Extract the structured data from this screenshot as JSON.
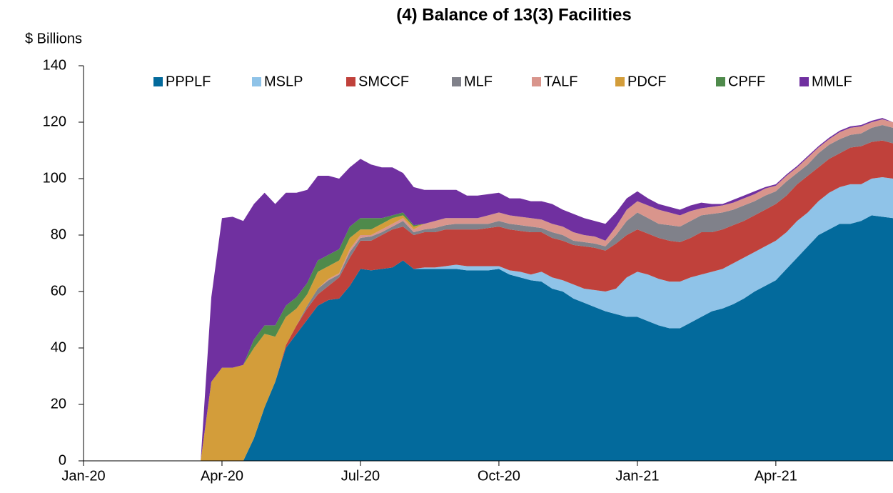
{
  "chart_data": {
    "type": "stacked_area",
    "title": "(4) Balance of 13(3) Facilities",
    "y_label": "$ Billions",
    "categories": [
      "Jan-20",
      null,
      null,
      null,
      null,
      null,
      null,
      null,
      null,
      null,
      null,
      null,
      null,
      "Apr-20",
      null,
      null,
      null,
      null,
      null,
      null,
      null,
      null,
      null,
      null,
      null,
      null,
      "Jul-20",
      null,
      null,
      null,
      null,
      null,
      null,
      null,
      null,
      null,
      null,
      null,
      null,
      "Oct-20",
      null,
      null,
      null,
      null,
      null,
      null,
      null,
      null,
      null,
      null,
      null,
      null,
      "Jan-21",
      null,
      null,
      null,
      null,
      null,
      null,
      null,
      null,
      null,
      null,
      null,
      null,
      "Apr-21",
      null,
      null,
      null,
      null,
      null,
      null,
      null,
      null,
      null,
      null,
      null
    ],
    "ylim": [
      0,
      140
    ],
    "yticks": [
      0,
      20,
      40,
      60,
      80,
      100,
      120,
      140
    ],
    "legend": "top",
    "series": [
      {
        "name": "PPPLF",
        "color": "#036a9c",
        "values": [
          0,
          0,
          0,
          0,
          0,
          0,
          0,
          0,
          0,
          0,
          0,
          0,
          0,
          0,
          0,
          0,
          8,
          19,
          28,
          40,
          45,
          50,
          55,
          57,
          57.5,
          62,
          68,
          67.5,
          68,
          68.5,
          71,
          68,
          68,
          68,
          68,
          68,
          67.5,
          67.5,
          67.5,
          68,
          66,
          65,
          64,
          63.5,
          61,
          60,
          57.5,
          56,
          54.5,
          53,
          52,
          51,
          51,
          49.5,
          48,
          47,
          47,
          49,
          51,
          53,
          54,
          55.5,
          57.5,
          60,
          62,
          64,
          68,
          72,
          76,
          80,
          82,
          84,
          84,
          85,
          87,
          86.5,
          86
        ]
      },
      {
        "name": "MSLP",
        "color": "#8fc3e8",
        "values": [
          0,
          0,
          0,
          0,
          0,
          0,
          0,
          0,
          0,
          0,
          0,
          0,
          0,
          0,
          0,
          0,
          0,
          0,
          0,
          0,
          0,
          0,
          0,
          0,
          0,
          0,
          0,
          0,
          0,
          0,
          0,
          0,
          0.5,
          0.5,
          1,
          1.5,
          1.5,
          1.5,
          1.5,
          1,
          1.5,
          2,
          2,
          3.5,
          4,
          4,
          5,
          5,
          6,
          7,
          9,
          14,
          16,
          16.5,
          16.5,
          16.5,
          16.5,
          16,
          15,
          14,
          14,
          14.5,
          14.5,
          14,
          14,
          14,
          13,
          13,
          12,
          12,
          13,
          13,
          14,
          13,
          13,
          14,
          14
        ]
      },
      {
        "name": "SMCCF",
        "color": "#c0413b",
        "values": [
          0,
          0,
          0,
          0,
          0,
          0,
          0,
          0,
          0,
          0,
          0,
          0,
          0,
          0,
          0,
          0,
          0,
          0,
          0,
          1,
          3,
          4,
          4,
          5,
          7.5,
          10,
          10,
          10.5,
          12,
          13.5,
          12,
          12,
          12.5,
          12.5,
          13,
          12.5,
          13,
          13,
          13.5,
          14,
          14.5,
          14.5,
          15,
          14,
          14,
          14,
          14,
          15,
          15,
          14.5,
          16,
          15,
          15,
          14.5,
          14.5,
          14.5,
          14,
          14,
          15,
          14,
          14,
          13.5,
          13,
          13,
          13,
          13,
          13,
          13,
          13,
          12,
          12,
          12,
          13,
          13.5,
          13,
          13,
          12.5
        ]
      },
      {
        "name": "MLF",
        "color": "#80818a",
        "values": [
          0,
          0,
          0,
          0,
          0,
          0,
          0,
          0,
          0,
          0,
          0,
          0,
          0,
          0,
          0,
          0,
          0,
          0,
          0,
          0,
          0,
          1,
          2,
          2,
          1,
          2,
          1,
          1.5,
          1,
          1,
          2,
          1,
          1,
          1.5,
          1.5,
          2,
          2,
          2,
          1.5,
          2,
          2,
          2,
          2,
          1.5,
          2,
          2,
          1.5,
          1.5,
          1.5,
          1.5,
          3,
          5,
          6,
          5.5,
          5,
          5.5,
          5.5,
          6,
          6,
          6.5,
          6,
          5.5,
          5.5,
          5,
          5,
          4.5,
          5,
          4,
          4,
          5,
          5,
          5,
          4.5,
          4.5,
          5,
          5.5,
          5.5
        ]
      },
      {
        "name": "TALF",
        "color": "#d9958c",
        "values": [
          0,
          0,
          0,
          0,
          0,
          0,
          0,
          0,
          0,
          0,
          0,
          0,
          0,
          0,
          0,
          0,
          0,
          0,
          0,
          0,
          0,
          0,
          0,
          0.5,
          0.5,
          1,
          1,
          0.5,
          1,
          1,
          1,
          1,
          2,
          2.5,
          2.5,
          2,
          2,
          2,
          3,
          3,
          3,
          3,
          3,
          3,
          3,
          3,
          3,
          2.5,
          2.5,
          2,
          3,
          4,
          4,
          4.5,
          5,
          4.5,
          4,
          3.5,
          2.5,
          2.5,
          2.5,
          2.5,
          2.5,
          2.5,
          2.5,
          2,
          2,
          2,
          2.5,
          2,
          2,
          2.5,
          2.5,
          2.5,
          2,
          2,
          2
        ]
      },
      {
        "name": "PDCF",
        "color": "#d39d3a",
        "values": [
          0,
          0,
          0,
          0,
          0,
          0,
          0,
          0,
          0,
          0,
          0,
          0,
          28,
          33,
          33,
          34,
          32,
          26,
          16,
          10,
          6,
          4,
          6,
          4.5,
          4.5,
          4,
          2,
          2,
          2,
          2,
          1,
          1,
          0,
          0,
          0,
          0,
          0,
          0,
          0,
          0,
          0,
          0,
          0,
          0,
          0,
          0,
          0,
          0,
          0,
          0,
          0,
          0,
          0,
          0,
          0,
          0,
          0,
          0,
          0,
          0,
          0,
          0,
          0,
          0,
          0,
          0,
          0,
          0,
          0,
          0,
          0,
          0,
          0,
          0,
          0,
          0,
          0
        ]
      },
      {
        "name": "CPFF",
        "color": "#4f8a4b",
        "values": [
          0,
          0,
          0,
          0,
          0,
          0,
          0,
          0,
          0,
          0,
          0,
          0,
          0,
          0,
          0,
          0,
          3,
          3,
          4,
          4,
          4,
          4,
          4,
          4,
          4,
          4,
          4,
          4,
          2,
          1,
          1,
          0.5,
          0,
          0,
          0,
          0,
          0,
          0,
          0,
          0,
          0,
          0,
          0,
          0,
          0,
          0,
          0,
          0,
          0,
          0,
          0,
          0,
          0,
          0,
          0,
          0,
          0,
          0,
          0,
          0,
          0,
          0,
          0,
          0,
          0,
          0,
          0,
          0,
          0,
          0,
          0,
          0,
          0,
          0,
          0,
          0,
          0
        ]
      },
      {
        "name": "MMLF",
        "color": "#7030a0",
        "values": [
          0,
          0,
          0,
          0,
          0,
          0,
          0,
          0,
          0,
          0,
          0,
          0,
          30,
          53,
          53.5,
          51,
          48,
          47,
          43,
          40,
          37,
          33,
          30,
          28,
          25,
          21,
          21,
          19,
          18,
          17,
          14,
          13.5,
          12,
          11,
          10,
          10,
          8,
          8,
          7.5,
          7,
          6,
          6.5,
          6,
          6.5,
          7,
          6,
          6.5,
          6,
          5.5,
          6,
          5,
          4,
          3.5,
          2.5,
          2,
          2,
          2,
          2,
          2,
          1,
          0.5,
          1,
          1,
          1,
          0.5,
          0.5,
          0.5,
          0.5,
          0.5,
          0.5,
          0.5,
          0.5,
          0.5,
          0.5,
          0.5,
          0.5,
          0
        ]
      }
    ]
  }
}
